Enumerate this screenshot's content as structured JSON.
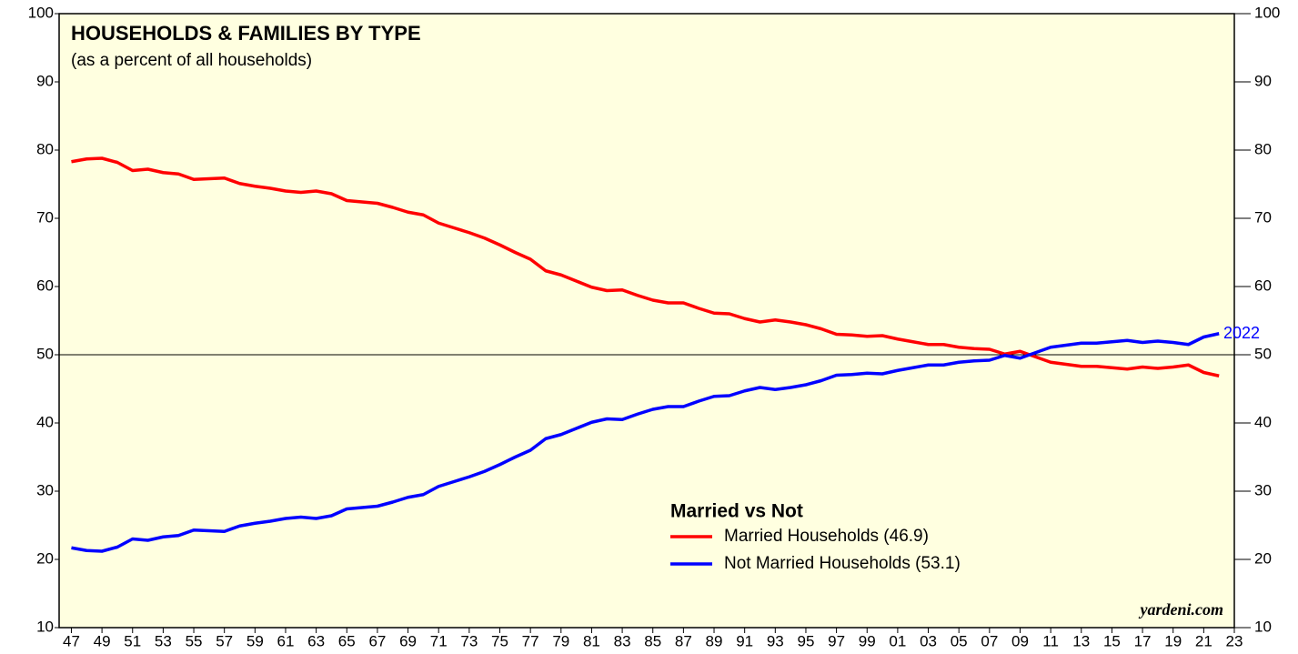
{
  "chart_data": {
    "type": "line",
    "title": "HOUSEHOLDS & FAMILIES BY TYPE",
    "subtitle": "(as a percent of all households)",
    "legend_title": "Married vs Not",
    "annotation": "2022",
    "source": "yardeni.com",
    "x": [
      1947,
      1948,
      1949,
      1950,
      1951,
      1952,
      1953,
      1954,
      1955,
      1956,
      1957,
      1958,
      1959,
      1960,
      1961,
      1962,
      1963,
      1964,
      1965,
      1966,
      1967,
      1968,
      1969,
      1970,
      1971,
      1972,
      1973,
      1974,
      1975,
      1976,
      1977,
      1978,
      1979,
      1980,
      1981,
      1982,
      1983,
      1984,
      1985,
      1986,
      1987,
      1988,
      1989,
      1990,
      1991,
      1992,
      1993,
      1994,
      1995,
      1996,
      1997,
      1998,
      1999,
      2000,
      2001,
      2002,
      2003,
      2004,
      2005,
      2006,
      2007,
      2008,
      2009,
      2010,
      2011,
      2012,
      2013,
      2014,
      2015,
      2016,
      2017,
      2018,
      2019,
      2020,
      2021,
      2022
    ],
    "series": [
      {
        "name": "Married Households (46.9)",
        "color": "#ff0000",
        "values": [
          78.3,
          78.7,
          78.8,
          78.2,
          77.0,
          77.2,
          76.7,
          76.5,
          75.7,
          75.8,
          75.9,
          75.1,
          74.7,
          74.4,
          74.0,
          73.8,
          74.0,
          73.6,
          72.6,
          72.4,
          72.2,
          71.6,
          70.9,
          70.5,
          69.3,
          68.6,
          67.9,
          67.1,
          66.1,
          65.0,
          64.0,
          62.3,
          61.7,
          60.8,
          59.9,
          59.4,
          59.5,
          58.7,
          58.0,
          57.6,
          57.6,
          56.8,
          56.1,
          56.0,
          55.3,
          54.8,
          55.1,
          54.8,
          54.4,
          53.8,
          53.0,
          52.9,
          52.7,
          52.8,
          52.3,
          51.9,
          51.5,
          51.5,
          51.1,
          50.9,
          50.8,
          50.1,
          50.5,
          49.7,
          48.9,
          48.6,
          48.3,
          48.3,
          48.1,
          47.9,
          48.2,
          48.0,
          48.2,
          48.5,
          47.4,
          46.9
        ]
      },
      {
        "name": "Not Married Households (53.1)",
        "color": "#0000ff",
        "values": [
          21.7,
          21.3,
          21.2,
          21.8,
          23.0,
          22.8,
          23.3,
          23.5,
          24.3,
          24.2,
          24.1,
          24.9,
          25.3,
          25.6,
          26.0,
          26.2,
          26.0,
          26.4,
          27.4,
          27.6,
          27.8,
          28.4,
          29.1,
          29.5,
          30.7,
          31.4,
          32.1,
          32.9,
          33.9,
          35.0,
          36.0,
          37.7,
          38.3,
          39.2,
          40.1,
          40.6,
          40.5,
          41.3,
          42.0,
          42.4,
          42.4,
          43.2,
          43.9,
          44.0,
          44.7,
          45.2,
          44.9,
          45.2,
          45.6,
          46.2,
          47.0,
          47.1,
          47.3,
          47.2,
          47.7,
          48.1,
          48.5,
          48.5,
          48.9,
          49.1,
          49.2,
          49.9,
          49.5,
          50.3,
          51.1,
          51.4,
          51.7,
          51.7,
          51.9,
          52.1,
          51.8,
          52.0,
          51.8,
          51.5,
          52.6,
          53.1
        ]
      }
    ],
    "xlim": [
      1946.2,
      2023.0
    ],
    "xticks": [
      {
        "value": 1947,
        "label": "47"
      },
      {
        "value": 1949,
        "label": "49"
      },
      {
        "value": 1951,
        "label": "51"
      },
      {
        "value": 1953,
        "label": "53"
      },
      {
        "value": 1955,
        "label": "55"
      },
      {
        "value": 1957,
        "label": "57"
      },
      {
        "value": 1959,
        "label": "59"
      },
      {
        "value": 1961,
        "label": "61"
      },
      {
        "value": 1963,
        "label": "63"
      },
      {
        "value": 1965,
        "label": "65"
      },
      {
        "value": 1967,
        "label": "67"
      },
      {
        "value": 1969,
        "label": "69"
      },
      {
        "value": 1971,
        "label": "71"
      },
      {
        "value": 1973,
        "label": "73"
      },
      {
        "value": 1975,
        "label": "75"
      },
      {
        "value": 1977,
        "label": "77"
      },
      {
        "value": 1979,
        "label": "79"
      },
      {
        "value": 1981,
        "label": "81"
      },
      {
        "value": 1983,
        "label": "83"
      },
      {
        "value": 1985,
        "label": "85"
      },
      {
        "value": 1987,
        "label": "87"
      },
      {
        "value": 1989,
        "label": "89"
      },
      {
        "value": 1991,
        "label": "91"
      },
      {
        "value": 1993,
        "label": "93"
      },
      {
        "value": 1995,
        "label": "95"
      },
      {
        "value": 1997,
        "label": "97"
      },
      {
        "value": 1999,
        "label": "99"
      },
      {
        "value": 2001,
        "label": "01"
      },
      {
        "value": 2003,
        "label": "03"
      },
      {
        "value": 2005,
        "label": "05"
      },
      {
        "value": 2007,
        "label": "07"
      },
      {
        "value": 2009,
        "label": "09"
      },
      {
        "value": 2011,
        "label": "11"
      },
      {
        "value": 2013,
        "label": "13"
      },
      {
        "value": 2015,
        "label": "15"
      },
      {
        "value": 2017,
        "label": "17"
      },
      {
        "value": 2019,
        "label": "19"
      },
      {
        "value": 2021,
        "label": "21"
      },
      {
        "value": 2023,
        "label": "23"
      }
    ],
    "ylim": [
      10,
      100
    ],
    "yticks": [
      10,
      20,
      30,
      40,
      50,
      60,
      70,
      80,
      90,
      100
    ],
    "y2lim": [
      10,
      100
    ],
    "y2ticks": [
      10,
      20,
      30,
      40,
      50,
      60,
      70,
      80,
      90,
      100
    ],
    "reference_line": 50,
    "background": "#ffffe0"
  }
}
